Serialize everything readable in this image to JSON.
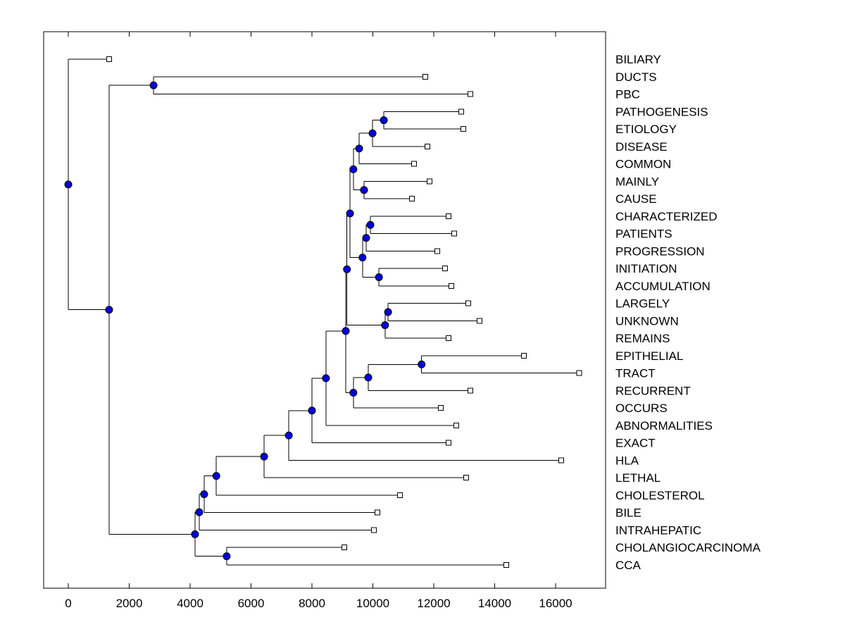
{
  "figure": {
    "background": "#FFFFFF"
  },
  "chart_data": {
    "type": "dendrogram",
    "orientation": "horizontal-right-leaves",
    "title": "",
    "xlabel": "",
    "ylabel": "",
    "grid": false,
    "legend": null,
    "x_ticks": [
      0,
      2000,
      4000,
      6000,
      8000,
      10000,
      12000,
      14000,
      16000
    ],
    "x_tick_labels": [
      "0",
      "2000",
      "4000",
      "6000",
      "8000",
      "10000",
      "12000",
      "14000",
      "16000"
    ],
    "x_range": [
      -810,
      17650
    ],
    "leaf_labels": [
      "BILIARY",
      "DUCTS",
      "PBC",
      "PATHOGENESIS",
      "ETIOLOGY",
      "DISEASE",
      "COMMON",
      "MAINLY",
      "CAUSE",
      "CHARACTERIZED",
      "PATIENTS",
      "PROGRESSION",
      "INITIATION",
      "ACCUMULATION",
      "LARGELY",
      "UNKNOWN",
      "REMAINS",
      "EPITHELIAL",
      "TRACT",
      "RECURRENT",
      "OCCURS",
      "ABNORMALITIES",
      "EXACT",
      "HLA",
      "LETHAL",
      "CHOLESTEROL",
      "BILE",
      "INTRAHEPATIC",
      "CHOLANGIOCARCINOMA",
      "CCA"
    ],
    "leaves": [
      {
        "label": "BILIARY",
        "x": 1340
      },
      {
        "label": "DUCTS",
        "x": 11720
      },
      {
        "label": "PBC",
        "x": 13200
      },
      {
        "label": "PATHOGENESIS",
        "x": 12900
      },
      {
        "label": "ETIOLOGY",
        "x": 12970
      },
      {
        "label": "DISEASE",
        "x": 11790
      },
      {
        "label": "COMMON",
        "x": 11350
      },
      {
        "label": "MAINLY",
        "x": 11860
      },
      {
        "label": "CAUSE",
        "x": 11280
      },
      {
        "label": "CHARACTERIZED",
        "x": 12480
      },
      {
        "label": "PATIENTS",
        "x": 12670
      },
      {
        "label": "PROGRESSION",
        "x": 12110
      },
      {
        "label": "INITIATION",
        "x": 12370
      },
      {
        "label": "ACCUMULATION",
        "x": 12580
      },
      {
        "label": "LARGELY",
        "x": 13130
      },
      {
        "label": "UNKNOWN",
        "x": 13500
      },
      {
        "label": "REMAINS",
        "x": 12480
      },
      {
        "label": "EPITHELIAL",
        "x": 14960
      },
      {
        "label": "TRACT",
        "x": 16780
      },
      {
        "label": "RECURRENT",
        "x": 13200
      },
      {
        "label": "OCCURS",
        "x": 12230
      },
      {
        "label": "ABNORMALITIES",
        "x": 12740
      },
      {
        "label": "EXACT",
        "x": 12480
      },
      {
        "label": "HLA",
        "x": 16180
      },
      {
        "label": "LETHAL",
        "x": 13060
      },
      {
        "label": "CHOLESTEROL",
        "x": 10890
      },
      {
        "label": "BILE",
        "x": 10150
      },
      {
        "label": "INTRAHEPATIC",
        "x": 10030
      },
      {
        "label": "CHOLANGIOCARCINOMA",
        "x": 9060
      },
      {
        "label": "CCA",
        "x": 14380
      }
    ],
    "internal_nodes": [
      {
        "id": "root",
        "x": 0,
        "children": [
          "BILIARY",
          "nB"
        ]
      },
      {
        "id": "nB",
        "x": 1340,
        "children": [
          "nC",
          "nZ"
        ]
      },
      {
        "id": "nC",
        "x": 2800,
        "children": [
          "DUCTS",
          "PBC"
        ]
      },
      {
        "id": "t1",
        "x": 10360,
        "children": [
          "PATHOGENESIS",
          "ETIOLOGY"
        ]
      },
      {
        "id": "t2",
        "x": 9990,
        "children": [
          "t1",
          "DISEASE"
        ]
      },
      {
        "id": "t3",
        "x": 9550,
        "children": [
          "t2",
          "COMMON"
        ]
      },
      {
        "id": "t4",
        "x": 9710,
        "children": [
          "MAINLY",
          "CAUSE"
        ]
      },
      {
        "id": "t5",
        "x": 9360,
        "children": [
          "t3",
          "t4"
        ]
      },
      {
        "id": "t6",
        "x": 9920,
        "children": [
          "CHARACTERIZED",
          "PATIENTS"
        ]
      },
      {
        "id": "t7",
        "x": 9780,
        "children": [
          "t6",
          "PROGRESSION"
        ]
      },
      {
        "id": "t8",
        "x": 10200,
        "children": [
          "INITIATION",
          "ACCUMULATION"
        ]
      },
      {
        "id": "t9",
        "x": 9660,
        "children": [
          "t7",
          "t8"
        ]
      },
      {
        "id": "t10",
        "x": 9250,
        "children": [
          "t5",
          "t9"
        ]
      },
      {
        "id": "t11",
        "x": 10500,
        "children": [
          "LARGELY",
          "UNKNOWN"
        ]
      },
      {
        "id": "t12",
        "x": 10400,
        "children": [
          "t11",
          "REMAINS"
        ]
      },
      {
        "id": "t13",
        "x": 9150,
        "children": [
          "t10",
          "t12"
        ]
      },
      {
        "id": "m1",
        "x": 11600,
        "children": [
          "EPITHELIAL",
          "TRACT"
        ]
      },
      {
        "id": "m2",
        "x": 9850,
        "children": [
          "m1",
          "RECURRENT"
        ]
      },
      {
        "id": "m3",
        "x": 9360,
        "children": [
          "m2",
          "OCCURS"
        ]
      },
      {
        "id": "u1",
        "x": 9110,
        "children": [
          "t13",
          "m3"
        ]
      },
      {
        "id": "s1",
        "x": 8460,
        "children": [
          "u1",
          "ABNORMALITIES"
        ]
      },
      {
        "id": "s2",
        "x": 8000,
        "children": [
          "s1",
          "EXACT"
        ]
      },
      {
        "id": "s3",
        "x": 7240,
        "children": [
          "s2",
          "HLA"
        ]
      },
      {
        "id": "s4",
        "x": 6430,
        "children": [
          "s3",
          "LETHAL"
        ]
      },
      {
        "id": "s5",
        "x": 4860,
        "children": [
          "s4",
          "CHOLESTEROL"
        ]
      },
      {
        "id": "s6",
        "x": 4460,
        "children": [
          "s5",
          "BILE"
        ]
      },
      {
        "id": "s7",
        "x": 4300,
        "children": [
          "s6",
          "INTRAHEPATIC"
        ]
      },
      {
        "id": "nW",
        "x": 5200,
        "children": [
          "CHOLANGIOCARCINOMA",
          "CCA"
        ]
      },
      {
        "id": "nZ",
        "x": 4160,
        "children": [
          "s7",
          "nW"
        ]
      }
    ],
    "root_id": "root",
    "styles": {
      "background": "#FFFFFF",
      "axis_color": "#000000",
      "branch_color": "#000000",
      "internal_node_fill": "#0000DC",
      "internal_node_edge": "#000000",
      "leaf_marker_fill": "#FFFFFF",
      "leaf_marker_edge": "#000000",
      "label_color": "#000000"
    }
  }
}
